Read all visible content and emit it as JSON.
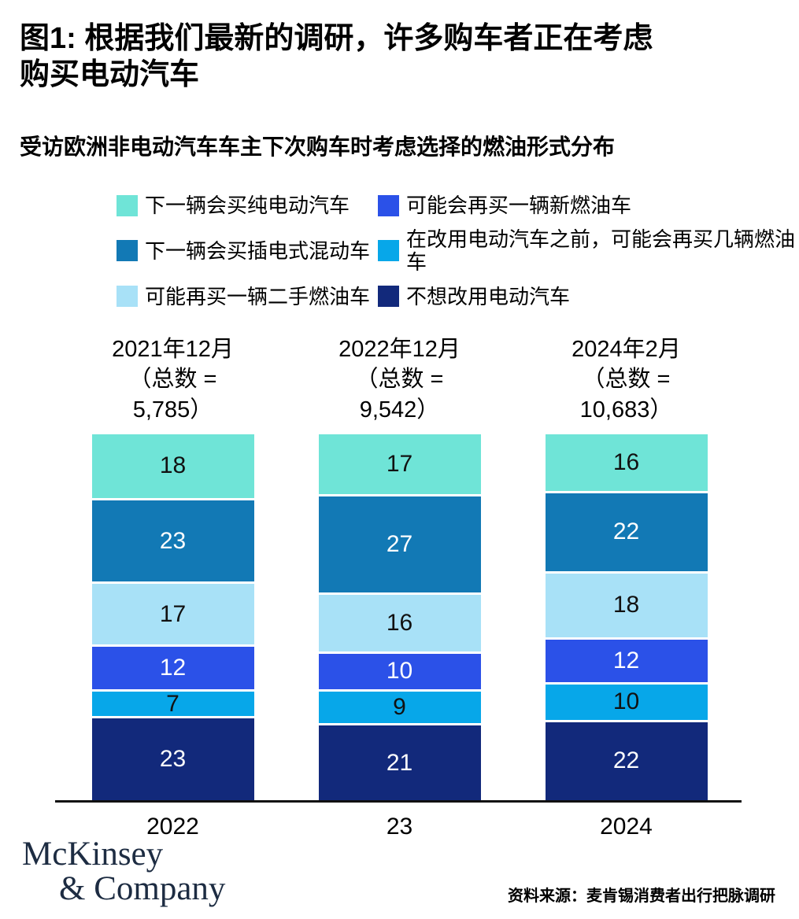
{
  "header": {
    "title_line1": "图1: 根据我们最新的调研，许多购车者正在考虑",
    "title_line2": "购买电动汽车",
    "subtitle": "受访欧洲非电动汽车车主下次购车时考虑选择的燃油形式分布"
  },
  "chart_data": {
    "type": "bar",
    "stacked": true,
    "unit": "percent",
    "ylim": [
      0,
      100
    ],
    "grid": false,
    "legend_position": "top",
    "legend_order": [
      0,
      3,
      1,
      4,
      2,
      5
    ],
    "series": [
      {
        "name": "下一辆会买纯电动汽车",
        "color": "#6fe4d7",
        "value_text_color": "#111111",
        "values": [
          18,
          17,
          16
        ]
      },
      {
        "name": "下一辆会买插电式混动车",
        "color": "#1279b5",
        "value_text_color": "#ffffff",
        "values": [
          23,
          27,
          22
        ]
      },
      {
        "name": "可能再买一辆二手燃油车",
        "color": "#a8e1f7",
        "value_text_color": "#111111",
        "values": [
          17,
          16,
          18
        ]
      },
      {
        "name": "可能会再买一辆新燃油车",
        "color": "#2b51e8",
        "value_text_color": "#ffffff",
        "values": [
          12,
          10,
          12
        ]
      },
      {
        "name": "在改用电动汽车之前，可能会再买几辆燃油车",
        "color": "#07a7e9",
        "value_text_color": "#111111",
        "values": [
          7,
          9,
          10
        ]
      },
      {
        "name": "不想改用电动汽车",
        "color": "#12297b",
        "value_text_color": "#ffffff",
        "values": [
          23,
          21,
          22
        ]
      }
    ],
    "groups": [
      {
        "header": "2021年12月",
        "total_label": "（总数 = 5,785）",
        "axis_label": "2022"
      },
      {
        "header": "2022年12月",
        "total_label": "（总数 = 9,542）",
        "axis_label": "23"
      },
      {
        "header": "2024年2月",
        "total_label": "（总数 = 10,683）",
        "axis_label": "2024"
      }
    ]
  },
  "footer": {
    "logo_line1": "McKinsey",
    "logo_line2": "& Company",
    "logo_color": "#1d2c42",
    "source": "资料来源：麦肯锡消费者出行把脉调研"
  }
}
